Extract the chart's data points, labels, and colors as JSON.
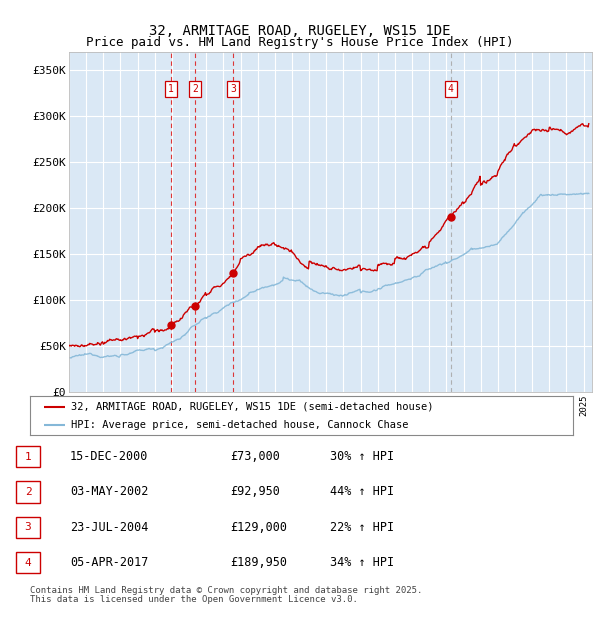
{
  "title": "32, ARMITAGE ROAD, RUGELEY, WS15 1DE",
  "subtitle": "Price paid vs. HM Land Registry's House Price Index (HPI)",
  "ylabel_ticks": [
    "£0",
    "£50K",
    "£100K",
    "£150K",
    "£200K",
    "£250K",
    "£300K",
    "£350K"
  ],
  "ylim": [
    0,
    370000
  ],
  "xlim_start": 1995.0,
  "xlim_end": 2025.5,
  "background_color": "#dae8f5",
  "grid_color": "#ffffff",
  "sale_color": "#cc0000",
  "hpi_color": "#85b8d8",
  "legend_sale_label": "32, ARMITAGE ROAD, RUGELEY, WS15 1DE (semi-detached house)",
  "legend_hpi_label": "HPI: Average price, semi-detached house, Cannock Chase",
  "transactions": [
    {
      "id": 1,
      "date_str": "15-DEC-2000",
      "date_num": 2000.96,
      "price": 73000,
      "pct": "30% ↑ HPI",
      "vline_color": "#dd2222"
    },
    {
      "id": 2,
      "date_str": "03-MAY-2002",
      "date_num": 2002.34,
      "price": 92950,
      "pct": "44% ↑ HPI",
      "vline_color": "#dd2222"
    },
    {
      "id": 3,
      "date_str": "23-JUL-2004",
      "date_num": 2004.56,
      "price": 129000,
      "pct": "22% ↑ HPI",
      "vline_color": "#dd2222"
    },
    {
      "id": 4,
      "date_str": "05-APR-2017",
      "date_num": 2017.26,
      "price": 189950,
      "pct": "34% ↑ HPI",
      "vline_color": "#aaaaaa"
    }
  ],
  "footer_line1": "Contains HM Land Registry data © Crown copyright and database right 2025.",
  "footer_line2": "This data is licensed under the Open Government Licence v3.0.",
  "title_fontsize": 10,
  "subtitle_fontsize": 9,
  "tick_fontsize": 8
}
